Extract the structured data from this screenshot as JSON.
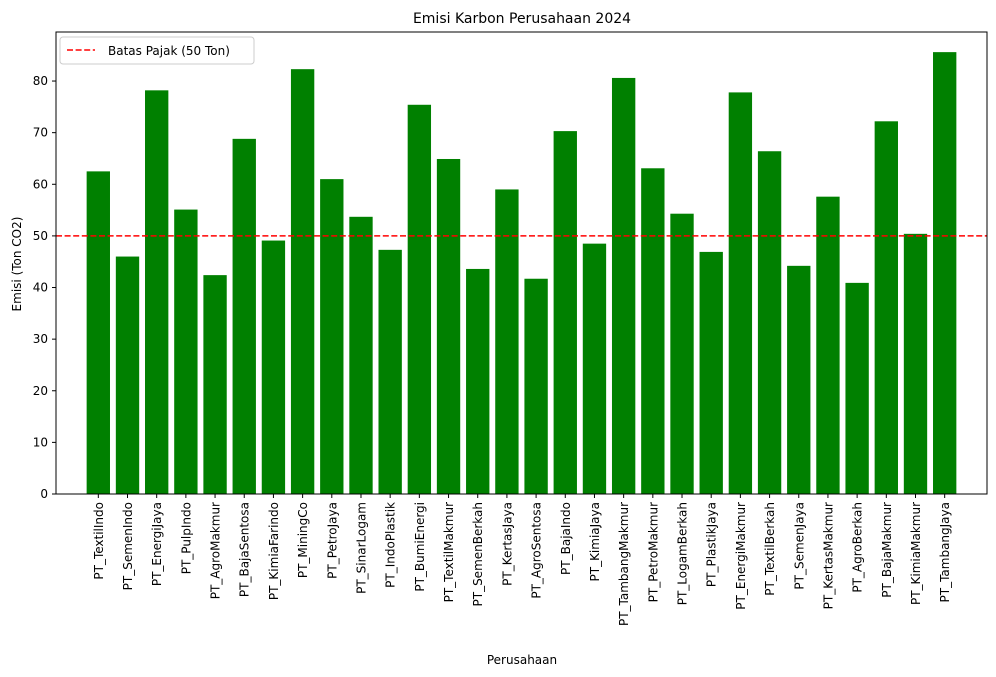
{
  "chart_data": {
    "type": "bar",
    "title": "Emisi Karbon Perusahaan 2024",
    "xlabel": "Perusahaan",
    "ylabel": "Emisi (Ton CO2)",
    "ylim": [
      0,
      89.5
    ],
    "yticks": [
      0,
      10,
      20,
      30,
      40,
      50,
      60,
      70,
      80
    ],
    "bar_color": "#008000",
    "categories": [
      "PT_TextilIndo",
      "PT_SemenIndo",
      "PT_EnergiJaya",
      "PT_PulpIndo",
      "PT_AgroMakmur",
      "PT_BajaSentosa",
      "PT_KimiaFarindo",
      "PT_MiningCo",
      "PT_PetroJaya",
      "PT_SinarLogam",
      "PT_IndoPlastik",
      "PT_BumiEnergi",
      "PT_TextilMakmur",
      "PT_SemenBerkah",
      "PT_KertasJaya",
      "PT_AgroSentosa",
      "PT_BajaIndo",
      "PT_KimiaJaya",
      "PT_TambangMakmur",
      "PT_PetroMakmur",
      "PT_LogamBerkah",
      "PT_PlastikJaya",
      "PT_EnergiMakmur",
      "PT_TextilBerkah",
      "PT_SemenJaya",
      "PT_KertasMakmur",
      "PT_AgroBerkah",
      "PT_BajaMakmur",
      "PT_KimiaMakmur",
      "PT_TambangJaya"
    ],
    "values": [
      62.5,
      46.0,
      78.2,
      55.1,
      42.4,
      68.8,
      49.1,
      82.3,
      61.0,
      53.7,
      47.3,
      75.4,
      64.9,
      43.6,
      59.0,
      41.7,
      70.3,
      48.5,
      80.6,
      63.1,
      54.3,
      46.9,
      77.8,
      66.4,
      44.2,
      57.6,
      40.9,
      72.2,
      50.4,
      85.6
    ],
    "reference_line": {
      "value": 50,
      "label": "Batas Pajak (50 Ton)",
      "color": "#ff0000",
      "style": "dashed"
    },
    "legend_position": "upper-left",
    "grid": false
  }
}
